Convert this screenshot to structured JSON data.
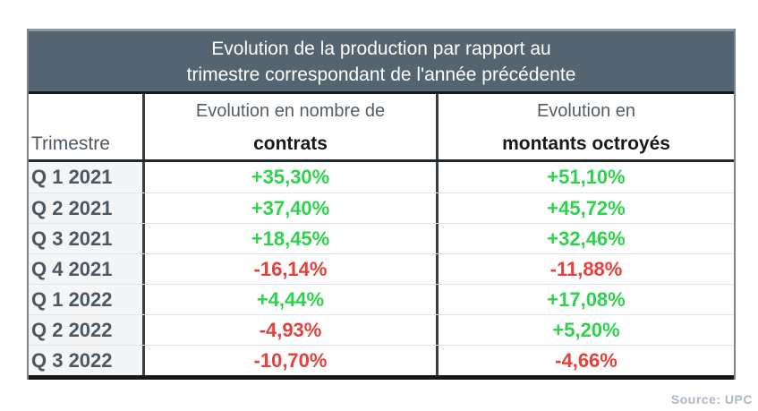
{
  "chart_data": {
    "type": "table",
    "title": "Evolution de la production par rapport au trimestre correspondant de l'année précédente",
    "title_lines": [
      "Evolution de la production par rapport au",
      "trimestre correspondant de l'année précédente"
    ],
    "columns": [
      {
        "id": "trimestre",
        "label": "Trimestre"
      },
      {
        "id": "contrats",
        "label_line1": "Evolution en nombre de",
        "label_line2": "contrats"
      },
      {
        "id": "montants",
        "label_line1": "Evolution en",
        "label_line2": "montants octroyés"
      }
    ],
    "rows": [
      {
        "trimestre": "Q 1 2021",
        "contrats": "+35,30%",
        "montants": "+51,10%"
      },
      {
        "trimestre": "Q 2 2021",
        "contrats": "+37,40%",
        "montants": "+45,72%"
      },
      {
        "trimestre": "Q 3 2021",
        "contrats": "+18,45%",
        "montants": "+32,46%"
      },
      {
        "trimestre": "Q 4 2021",
        "contrats": "-16,14%",
        "montants": "-11,88%"
      },
      {
        "trimestre": "Q 1 2022",
        "contrats": "+4,44%",
        "montants": "+17,08%"
      },
      {
        "trimestre": "Q 2 2022",
        "contrats": "-4,93%",
        "montants": "+5,20%"
      },
      {
        "trimestre": "Q 3 2022",
        "contrats": "-10,70%",
        "montants": "-4,66%"
      }
    ],
    "value_format": "percent_fr_comma",
    "legend_position": "none"
  },
  "footer": {
    "source": "Source: UPC"
  },
  "colors": {
    "positive": "#2fd24c",
    "negative": "#e4403c",
    "header_bg": "#546471",
    "header_text": "#ffffff",
    "source_text": "#aeb8c4"
  }
}
